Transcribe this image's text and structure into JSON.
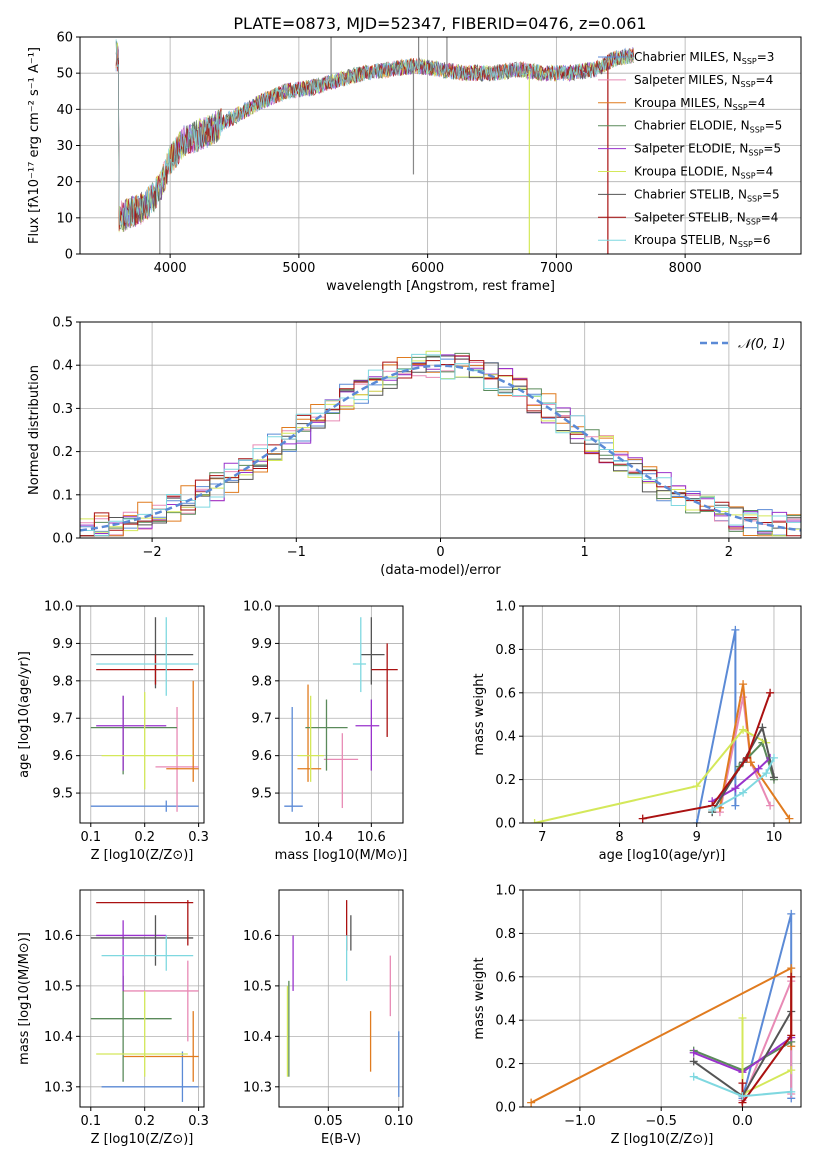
{
  "title": "PLATE=0873, MJD=52347, FIBERID=0476, z=0.061",
  "series_colors": {
    "Chabrier MILES": "#5b8ad6",
    "Salpeter MILES": "#e88ab5",
    "Kroupa MILES": "#e07b1f",
    "Chabrier ELODIE": "#5a8a5a",
    "Salpeter ELODIE": "#9933cc",
    "Kroupa ELODIE": "#d4e85a",
    "Chabrier STELIB": "#555555",
    "Salpeter STELIB": "#aa1111",
    "Kroupa STELIB": "#7fd8e0"
  },
  "chart_data": [
    {
      "id": "spectrum",
      "type": "line",
      "xlabel": "wavelength [Angstrom, rest frame]",
      "ylabel": "Flux [fλ10⁻¹⁷ erg cm⁻² s⁻¹ A⁻¹]",
      "xlim": [
        3300,
        8900
      ],
      "ylim": [
        0,
        60
      ],
      "xticks": [
        4000,
        5000,
        6000,
        7000,
        8000
      ],
      "yticks": [
        0,
        10,
        20,
        30,
        40,
        50,
        60
      ],
      "legend": [
        "Chabrier MILES, N_SSP=3",
        "Salpeter MILES, N_SSP=4",
        "Kroupa MILES, N_SSP=4",
        "Chabrier ELODIE, N_SSP=5",
        "Salpeter ELODIE, N_SSP=5",
        "Kroupa ELODIE, N_SSP=4",
        "Chabrier STELIB, N_SSP=5",
        "Salpeter STELIB, N_SSP=4",
        "Kroupa STELIB, N_SSP=6"
      ],
      "legend_position": "right",
      "continuum": [
        [
          3600,
          10
        ],
        [
          3800,
          13
        ],
        [
          3920,
          18
        ],
        [
          4000,
          26
        ],
        [
          4100,
          31
        ],
        [
          4300,
          34
        ],
        [
          4500,
          38
        ],
        [
          4700,
          42
        ],
        [
          4900,
          45
        ],
        [
          5100,
          46
        ],
        [
          5300,
          48
        ],
        [
          5500,
          50
        ],
        [
          5700,
          51
        ],
        [
          5900,
          52
        ],
        [
          6100,
          51
        ],
        [
          6300,
          50
        ],
        [
          6500,
          50
        ],
        [
          6700,
          51
        ],
        [
          6900,
          50
        ],
        [
          7100,
          50
        ],
        [
          7300,
          51
        ],
        [
          7450,
          54
        ],
        [
          7600,
          55
        ]
      ],
      "spikes": [
        [
          3920,
          0
        ],
        [
          5250,
          60
        ],
        [
          5890,
          22
        ],
        [
          5930,
          60
        ],
        [
          6150,
          60
        ],
        [
          6790,
          0
        ],
        [
          7400,
          0
        ]
      ]
    },
    {
      "id": "residual_hist",
      "type": "bar",
      "xlabel": "(data-model)/error",
      "ylabel": "Normed distribution",
      "xlim": [
        -2.5,
        2.5
      ],
      "ylim": [
        0,
        0.5
      ],
      "xticks": [
        -2,
        -1,
        0,
        1,
        2
      ],
      "yticks": [
        0.0,
        0.1,
        0.2,
        0.3,
        0.4,
        0.5
      ],
      "legend": [
        "𝒩(0, 1)"
      ],
      "legend_position": "top-right",
      "bin_width": 0.1
    },
    {
      "id": "age_vs_Z",
      "type": "scatter",
      "xlabel": "Z [log10(Z/Z⊙)]",
      "ylabel": "age  [log10(age/yr)]",
      "xlim": [
        0.08,
        0.31
      ],
      "ylim": [
        9.42,
        10.0
      ],
      "xticks": [
        0.1,
        0.2,
        0.3
      ],
      "yticks": [
        9.5,
        9.6,
        9.7,
        9.8,
        9.9,
        10.0
      ],
      "points": [
        {
          "series": "Chabrier MILES",
          "x": 0.24,
          "y": 9.465,
          "xerr": [
            0.1,
            0.3
          ],
          "yerr": [
            9.45,
            9.48
          ]
        },
        {
          "series": "Salpeter MILES",
          "x": 0.26,
          "y": 9.57,
          "xerr": [
            0.22,
            0.3
          ],
          "yerr": [
            9.45,
            9.73
          ]
        },
        {
          "series": "Kroupa MILES",
          "x": 0.29,
          "y": 9.565,
          "xerr": [
            0.24,
            0.3
          ],
          "yerr": [
            9.53,
            9.8
          ]
        },
        {
          "series": "Chabrier ELODIE",
          "x": 0.16,
          "y": 9.675,
          "xerr": [
            0.1,
            0.26
          ],
          "yerr": [
            9.55,
            9.76
          ]
        },
        {
          "series": "Salpeter ELODIE",
          "x": 0.16,
          "y": 9.68,
          "xerr": [
            0.11,
            0.24
          ],
          "yerr": [
            9.56,
            9.76
          ]
        },
        {
          "series": "Kroupa ELODIE",
          "x": 0.2,
          "y": 9.6,
          "xerr": [
            0.12,
            0.29
          ],
          "yerr": [
            9.51,
            9.77
          ]
        },
        {
          "series": "Chabrier STELIB",
          "x": 0.22,
          "y": 9.87,
          "xerr": [
            0.1,
            0.29
          ],
          "yerr": [
            9.78,
            9.97
          ]
        },
        {
          "series": "Salpeter STELIB",
          "x": 0.22,
          "y": 9.83,
          "xerr": [
            0.11,
            0.29
          ],
          "yerr": [
            9.79,
            9.87
          ]
        },
        {
          "series": "Kroupa STELIB",
          "x": 0.24,
          "y": 9.845,
          "xerr": [
            0.11,
            0.3
          ],
          "yerr": [
            9.76,
            9.97
          ]
        }
      ]
    },
    {
      "id": "age_vs_mass",
      "type": "scatter",
      "xlabel": "mass [log10(M/M⊙)]",
      "ylabel": "",
      "xlim": [
        10.25,
        10.72
      ],
      "ylim": [
        9.42,
        10.0
      ],
      "xticks": [
        10.4,
        10.6
      ],
      "yticks": [
        9.5,
        9.6,
        9.7,
        9.8,
        9.9,
        10.0
      ],
      "points": [
        {
          "series": "Chabrier MILES",
          "x": 10.3,
          "y": 9.465,
          "xerr": [
            10.27,
            10.34
          ],
          "yerr": [
            9.45,
            9.73
          ]
        },
        {
          "series": "Salpeter MILES",
          "x": 10.49,
          "y": 9.59,
          "xerr": [
            10.42,
            10.55
          ],
          "yerr": [
            9.46,
            9.66
          ]
        },
        {
          "series": "Kroupa MILES",
          "x": 10.36,
          "y": 9.565,
          "xerr": [
            10.32,
            10.41
          ],
          "yerr": [
            9.53,
            9.79
          ]
        },
        {
          "series": "Chabrier ELODIE",
          "x": 10.43,
          "y": 9.675,
          "xerr": [
            10.35,
            10.51
          ],
          "yerr": [
            9.56,
            9.75
          ]
        },
        {
          "series": "Salpeter ELODIE",
          "x": 10.6,
          "y": 9.68,
          "xerr": [
            10.54,
            10.63
          ],
          "yerr": [
            9.56,
            9.75
          ]
        },
        {
          "series": "Kroupa ELODIE",
          "x": 10.37,
          "y": 9.6,
          "xerr": [
            10.32,
            10.42
          ],
          "yerr": [
            9.53,
            9.76
          ]
        },
        {
          "series": "Chabrier STELIB",
          "x": 10.6,
          "y": 9.87,
          "xerr": [
            10.56,
            10.65
          ],
          "yerr": [
            9.79,
            9.97
          ]
        },
        {
          "series": "Salpeter STELIB",
          "x": 10.66,
          "y": 9.83,
          "xerr": [
            10.6,
            10.7
          ],
          "yerr": [
            9.65,
            9.9
          ]
        },
        {
          "series": "Kroupa STELIB",
          "x": 10.56,
          "y": 9.845,
          "xerr": [
            10.53,
            10.58
          ],
          "yerr": [
            9.77,
            9.97
          ]
        }
      ]
    },
    {
      "id": "weight_vs_age",
      "type": "line",
      "xlabel": "age  [log10(age/yr)]",
      "ylabel": "mass weight",
      "xlim": [
        6.75,
        10.35
      ],
      "ylim": [
        0,
        1.0
      ],
      "xticks": [
        7,
        8,
        9,
        10
      ],
      "yticks": [
        0.0,
        0.2,
        0.4,
        0.6,
        0.8,
        1.0
      ],
      "series": [
        {
          "name": "Chabrier MILES",
          "x": [
            9.0,
            9.5,
            9.5
          ],
          "y": [
            0.0,
            0.89,
            0.08
          ]
        },
        {
          "name": "Salpeter MILES",
          "x": [
            9.3,
            9.6,
            9.7,
            9.95
          ],
          "y": [
            0.05,
            0.58,
            0.28,
            0.08
          ]
        },
        {
          "name": "Kroupa MILES",
          "x": [
            9.3,
            9.6,
            9.7,
            10.2
          ],
          "y": [
            0.07,
            0.64,
            0.28,
            0.02
          ]
        },
        {
          "name": "Chabrier ELODIE",
          "x": [
            9.2,
            9.55,
            9.85,
            10.0
          ],
          "y": [
            0.05,
            0.26,
            0.37,
            0.2
          ]
        },
        {
          "name": "Salpeter ELODIE",
          "x": [
            9.2,
            9.5,
            9.8,
            9.95
          ],
          "y": [
            0.1,
            0.16,
            0.25,
            0.3
          ]
        },
        {
          "name": "Kroupa ELODIE",
          "x": [
            6.9,
            9.0,
            9.6,
            9.9
          ],
          "y": [
            0.0,
            0.17,
            0.43,
            0.37
          ]
        },
        {
          "name": "Chabrier STELIB",
          "x": [
            9.2,
            9.6,
            9.85,
            10.0
          ],
          "y": [
            0.05,
            0.28,
            0.44,
            0.21
          ]
        },
        {
          "name": "Salpeter STELIB",
          "x": [
            8.3,
            9.2,
            9.65,
            9.95
          ],
          "y": [
            0.02,
            0.08,
            0.3,
            0.6
          ]
        },
        {
          "name": "Kroupa STELIB",
          "x": [
            9.2,
            9.6,
            9.9,
            10.0
          ],
          "y": [
            0.06,
            0.14,
            0.23,
            0.3
          ]
        }
      ]
    },
    {
      "id": "mass_vs_Z",
      "type": "scatter",
      "xlabel": "Z [log10(Z/Z⊙)]",
      "ylabel": "mass [log10(M/M⊙)]",
      "xlim": [
        0.08,
        0.31
      ],
      "ylim": [
        10.26,
        10.69
      ],
      "xticks": [
        0.1,
        0.2,
        0.3
      ],
      "yticks": [
        10.3,
        10.4,
        10.5,
        10.6
      ],
      "points": [
        {
          "series": "Chabrier MILES",
          "x": 0.27,
          "y": 10.3,
          "xerr": [
            0.12,
            0.3
          ],
          "yerr": [
            10.27,
            10.37
          ]
        },
        {
          "series": "Salpeter MILES",
          "x": 0.28,
          "y": 10.49,
          "xerr": [
            0.16,
            0.3
          ],
          "yerr": [
            10.39,
            10.55
          ]
        },
        {
          "series": "Kroupa MILES",
          "x": 0.29,
          "y": 10.36,
          "xerr": [
            0.16,
            0.3
          ],
          "yerr": [
            10.31,
            10.45
          ]
        },
        {
          "series": "Chabrier ELODIE",
          "x": 0.16,
          "y": 10.435,
          "xerr": [
            0.1,
            0.25
          ],
          "yerr": [
            10.31,
            10.52
          ]
        },
        {
          "series": "Salpeter ELODIE",
          "x": 0.16,
          "y": 10.6,
          "xerr": [
            0.11,
            0.24
          ],
          "yerr": [
            10.49,
            10.63
          ]
        },
        {
          "series": "Kroupa ELODIE",
          "x": 0.2,
          "y": 10.365,
          "xerr": [
            0.11,
            0.28
          ],
          "yerr": [
            10.32,
            10.49
          ]
        },
        {
          "series": "Chabrier STELIB",
          "x": 0.22,
          "y": 10.595,
          "xerr": [
            0.1,
            0.29
          ],
          "yerr": [
            10.54,
            10.64
          ]
        },
        {
          "series": "Salpeter STELIB",
          "x": 0.28,
          "y": 10.665,
          "xerr": [
            0.11,
            0.29
          ],
          "yerr": [
            10.58,
            10.67
          ]
        },
        {
          "series": "Kroupa STELIB",
          "x": 0.24,
          "y": 10.56,
          "xerr": [
            0.12,
            0.29
          ],
          "yerr": [
            10.53,
            10.6
          ]
        }
      ]
    },
    {
      "id": "mass_vs_ebv",
      "type": "scatter",
      "xlabel": "E(B-V)",
      "ylabel": "",
      "xlim": [
        0.015,
        0.103
      ],
      "ylim": [
        10.26,
        10.69
      ],
      "xticks": [
        0.05,
        0.1
      ],
      "yticks": [
        10.3,
        10.4,
        10.5,
        10.6
      ],
      "points": [
        {
          "series": "Chabrier MILES",
          "x": 0.1,
          "y": 10.3,
          "yerr": [
            10.28,
            10.41
          ]
        },
        {
          "series": "Salpeter MILES",
          "x": 0.094,
          "y": 10.49,
          "yerr": [
            10.44,
            10.56
          ]
        },
        {
          "series": "Kroupa MILES",
          "x": 0.08,
          "y": 10.39,
          "yerr": [
            10.33,
            10.45
          ]
        },
        {
          "series": "Chabrier ELODIE",
          "x": 0.022,
          "y": 10.44,
          "yerr": [
            10.32,
            10.51
          ]
        },
        {
          "series": "Salpeter ELODIE",
          "x": 0.025,
          "y": 10.6,
          "yerr": [
            10.49,
            10.6
          ]
        },
        {
          "series": "Kroupa ELODIE",
          "x": 0.021,
          "y": 10.4,
          "yerr": [
            10.32,
            10.5
          ]
        },
        {
          "series": "Chabrier STELIB",
          "x": 0.066,
          "y": 10.6,
          "yerr": [
            10.57,
            10.64
          ]
        },
        {
          "series": "Salpeter STELIB",
          "x": 0.063,
          "y": 10.64,
          "yerr": [
            10.57,
            10.67
          ]
        },
        {
          "series": "Kroupa STELIB",
          "x": 0.063,
          "y": 10.56,
          "yerr": [
            10.51,
            10.6
          ]
        }
      ]
    },
    {
      "id": "weight_vs_Z",
      "type": "line",
      "xlabel": "Z [log10(Z/Z⊙)]",
      "ylabel": "mass weight",
      "xlim": [
        -1.35,
        0.36
      ],
      "ylim": [
        0,
        1.0
      ],
      "xticks": [
        -1.0,
        -0.5,
        0.0
      ],
      "yticks": [
        0.0,
        0.2,
        0.4,
        0.6,
        0.8,
        1.0
      ],
      "series": [
        {
          "name": "Chabrier MILES",
          "x": [
            0.0,
            0.3,
            0.3
          ],
          "y": [
            0.04,
            0.89,
            0.04
          ]
        },
        {
          "name": "Salpeter MILES",
          "x": [
            0.0,
            0.3,
            0.3
          ],
          "y": [
            0.03,
            0.58,
            0.06
          ]
        },
        {
          "name": "Kroupa MILES",
          "x": [
            -1.3,
            0.3,
            0.3
          ],
          "y": [
            0.02,
            0.64,
            0.28
          ]
        },
        {
          "name": "Chabrier ELODIE",
          "x": [
            -0.3,
            0.0,
            0.3
          ],
          "y": [
            0.26,
            0.17,
            0.3
          ]
        },
        {
          "name": "Salpeter ELODIE",
          "x": [
            -0.3,
            0.0,
            0.3
          ],
          "y": [
            0.25,
            0.16,
            0.32
          ]
        },
        {
          "name": "Kroupa ELODIE",
          "x": [
            0.0,
            0.0,
            0.3
          ],
          "y": [
            0.41,
            0.06,
            0.17
          ]
        },
        {
          "name": "Chabrier STELIB",
          "x": [
            -0.3,
            0.0,
            0.3
          ],
          "y": [
            0.21,
            0.05,
            0.44
          ]
        },
        {
          "name": "Salpeter STELIB",
          "x": [
            0.0,
            0.0,
            0.3,
            0.3
          ],
          "y": [
            0.11,
            0.02,
            0.33,
            0.6
          ]
        },
        {
          "name": "Kroupa STELIB",
          "x": [
            -0.3,
            0.0,
            0.3
          ],
          "y": [
            0.14,
            0.05,
            0.07
          ]
        }
      ]
    }
  ]
}
